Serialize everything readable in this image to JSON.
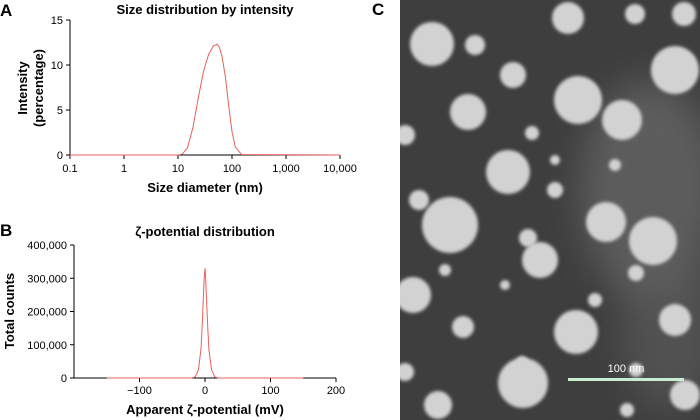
{
  "panels": {
    "A": "A",
    "B": "B",
    "C": "C"
  },
  "chart_data": [
    {
      "type": "line",
      "title": "Size distribution by intensity",
      "xlabel": "Size diameter (nm)",
      "ylabel_line1": "Intensity",
      "ylabel_line2": "(percentage)",
      "xscale": "log",
      "xlim": [
        0.1,
        10000
      ],
      "ylim": [
        0,
        15
      ],
      "xticks": [
        0.1,
        1,
        10,
        100,
        1000,
        10000
      ],
      "xtick_labels": [
        "0.1",
        "1",
        "10",
        "100",
        "1,000",
        "10,000"
      ],
      "yticks": [
        0,
        5,
        10,
        15
      ],
      "ytick_labels": [
        "0",
        "5",
        "10",
        "15"
      ],
      "line_color": "#e8605a",
      "series": [
        {
          "x": [
            0.1,
            10,
            12,
            15,
            19,
            24,
            30,
            37,
            45,
            53,
            58,
            65,
            75,
            88,
            100,
            115,
            150,
            10000
          ],
          "y": [
            0,
            0,
            0.1,
            0.8,
            3.1,
            6.5,
            9.4,
            11.2,
            12.1,
            12.3,
            12.0,
            11.0,
            8.8,
            5.2,
            2.6,
            0.9,
            0.05,
            0
          ]
        }
      ]
    },
    {
      "type": "line",
      "title": "ζ-potential distribution",
      "xlabel": "Apparent ζ-potential (mV)",
      "ylabel": "Total counts",
      "xlim": [
        -200,
        200
      ],
      "ylim": [
        0,
        400000
      ],
      "xticks": [
        -100,
        0,
        100,
        200
      ],
      "xtick_labels": [
        "−100",
        "0",
        "100",
        "200"
      ],
      "yticks": [
        0,
        100000,
        200000,
        300000,
        400000
      ],
      "ytick_labels": [
        "0",
        "100,000",
        "200,000",
        "300,000",
        "400,000"
      ],
      "axis_x_extent": [
        -150,
        150
      ],
      "line_color": "#e8605a",
      "series": [
        {
          "x": [
            -150,
            -20,
            -15,
            -10,
            -6,
            -4,
            -2,
            -1,
            0,
            1,
            2,
            4,
            6,
            10,
            15,
            20,
            150
          ],
          "y": [
            0,
            0,
            3000,
            25000,
            90000,
            170000,
            265000,
            310000,
            330000,
            300000,
            250000,
            160000,
            85000,
            25000,
            3000,
            0,
            0
          ]
        }
      ]
    }
  ],
  "micrograph": {
    "scale_label": "100 nm",
    "scale_color": "#c9ecd3",
    "background_color": "#3e3e3e",
    "particle_color": "#d2d2d2"
  }
}
